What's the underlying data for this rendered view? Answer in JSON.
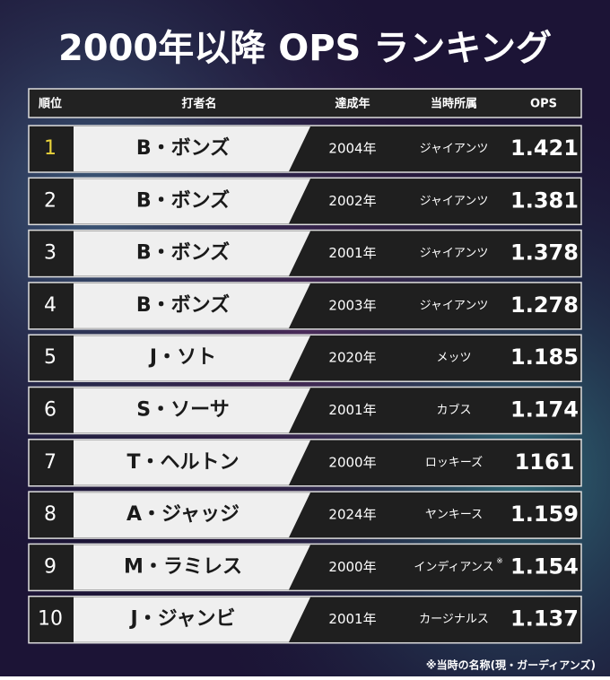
{
  "title": "2000年以降 OPS ランキング",
  "table": {
    "header": [
      "順位",
      "打者名",
      "達成年",
      "当時所属",
      "OPS"
    ],
    "rows": [
      {
        "rank": "1",
        "name": "B・ボンズ",
        "year": "2004年",
        "team": "ジャイアンツ",
        "ops": "1.421"
      },
      {
        "rank": "2",
        "name": "B・ボンズ",
        "year": "2002年",
        "team": "ジャイアンツ",
        "ops": "1.381"
      },
      {
        "rank": "3",
        "name": "B・ボンズ",
        "year": "2001年",
        "team": "ジャイアンツ",
        "ops": "1.378"
      },
      {
        "rank": "4",
        "name": "B・ボンズ",
        "year": "2003年",
        "team": "ジャイアンツ",
        "ops": "1.278"
      },
      {
        "rank": "5",
        "name": "J・ソト",
        "year": "2020年",
        "team": "メッツ",
        "ops": "1.185"
      },
      {
        "rank": "6",
        "name": "S・ソーサ",
        "year": "2001年",
        "team": "カブス",
        "ops": "1.174"
      },
      {
        "rank": "7",
        "name": "T・ヘルトン",
        "year": "2000年",
        "team": "ロッキーズ",
        "ops": "1161"
      },
      {
        "rank": "8",
        "name": "A・ジャッジ",
        "year": "2024年",
        "team": "ヤンキース",
        "ops": "1.159"
      },
      {
        "rank": "9",
        "name": "M・ラミレス",
        "year": "2000年",
        "team": "インディアンス",
        "mark": "※",
        "ops": "1.154"
      },
      {
        "rank": "10",
        "name": "J・ジャンビ",
        "year": "2001年",
        "team": "カージナルス",
        "ops": "1.137"
      }
    ]
  },
  "footnote": "※当時の名称(現・ガーディアンズ)"
}
